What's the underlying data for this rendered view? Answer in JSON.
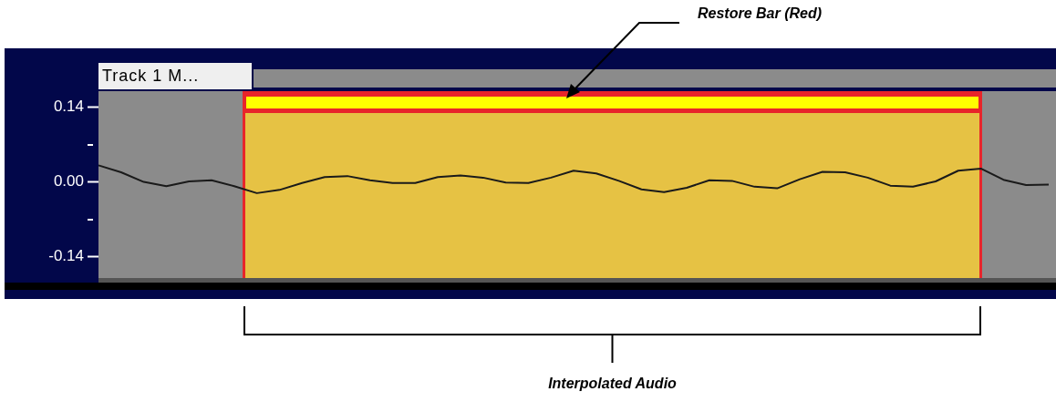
{
  "chart_data": {
    "type": "line",
    "title": "Track 1 M...",
    "annotations": [
      "Restore Bar (Red)",
      "Interpolated Audio"
    ],
    "categories": [
      null,
      null,
      null,
      null,
      null,
      null,
      null,
      null,
      null,
      null,
      null,
      null,
      null,
      null,
      null,
      null,
      null,
      null,
      null,
      null,
      null,
      null,
      null,
      null,
      null,
      null,
      null,
      null,
      null,
      null,
      null,
      null,
      null,
      null,
      null,
      null,
      null,
      null,
      null,
      null,
      null,
      null,
      null
    ],
    "series": [
      {
        "color": "#1a1a1a",
        "values": [
          0.031,
          0.018,
          0.0,
          -0.008,
          0.001,
          0.003,
          -0.008,
          -0.021,
          -0.015,
          -0.002,
          0.009,
          0.011,
          0.003,
          -0.002,
          -0.002,
          0.009,
          0.012,
          0.008,
          -0.001,
          -0.002,
          0.008,
          0.021,
          0.016,
          0.002,
          -0.014,
          -0.019,
          -0.011,
          0.003,
          0.002,
          -0.009,
          -0.012,
          0.005,
          0.019,
          0.018,
          0.008,
          -0.007,
          -0.009,
          0.001,
          0.021,
          0.025,
          0.004,
          -0.006,
          -0.005
        ]
      }
    ],
    "ylim": [
      -0.18,
      0.17
    ],
    "yticks": [
      {
        "value": 0.14,
        "label": "0.14"
      },
      {
        "value": 0,
        "label": "0.00"
      },
      {
        "value": -0.14,
        "label": "-0.14"
      }
    ],
    "tick_labels": "y",
    "grid": false,
    "legend": false,
    "marker": "none",
    "line_style": "solid"
  }
}
